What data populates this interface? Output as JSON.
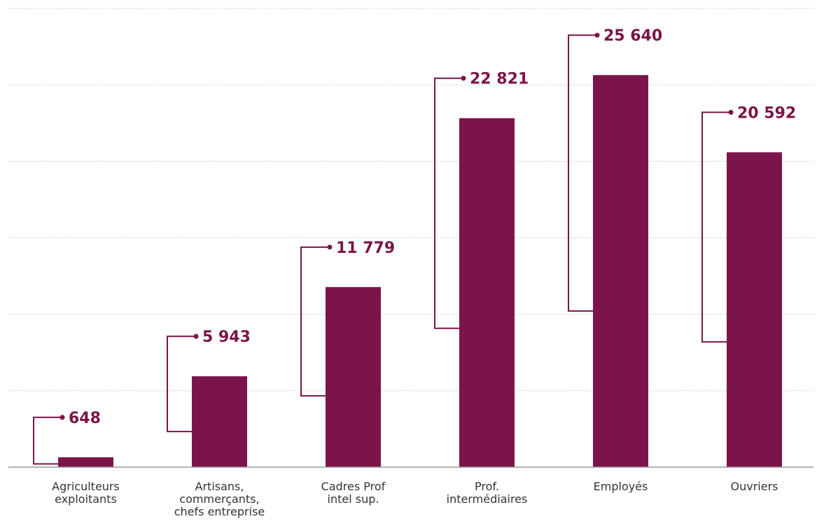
{
  "chart_data": {
    "type": "bar",
    "title": "",
    "xlabel": "",
    "ylabel": "",
    "categories": [
      [
        "Agriculteurs",
        "exploitants"
      ],
      [
        "Artisans,",
        "commerçants,",
        "chefs entreprise"
      ],
      [
        "Cadres Prof",
        "intel sup."
      ],
      [
        "Prof.",
        "intermédiaires"
      ],
      [
        "Employés"
      ],
      [
        "Ouvriers"
      ]
    ],
    "values": [
      648,
      5943,
      11779,
      22821,
      25640,
      20592
    ],
    "value_labels": [
      "648",
      "5 943",
      "11 779",
      "22 821",
      "25 640",
      "20 592"
    ],
    "ylim": [
      0,
      30000
    ],
    "grid": true,
    "legend": "none"
  },
  "colors": {
    "bar": "#7b144a",
    "connector": "#7b144a",
    "grid": "#bbbbbb",
    "axis": "#999999",
    "category_text": "#333333"
  }
}
